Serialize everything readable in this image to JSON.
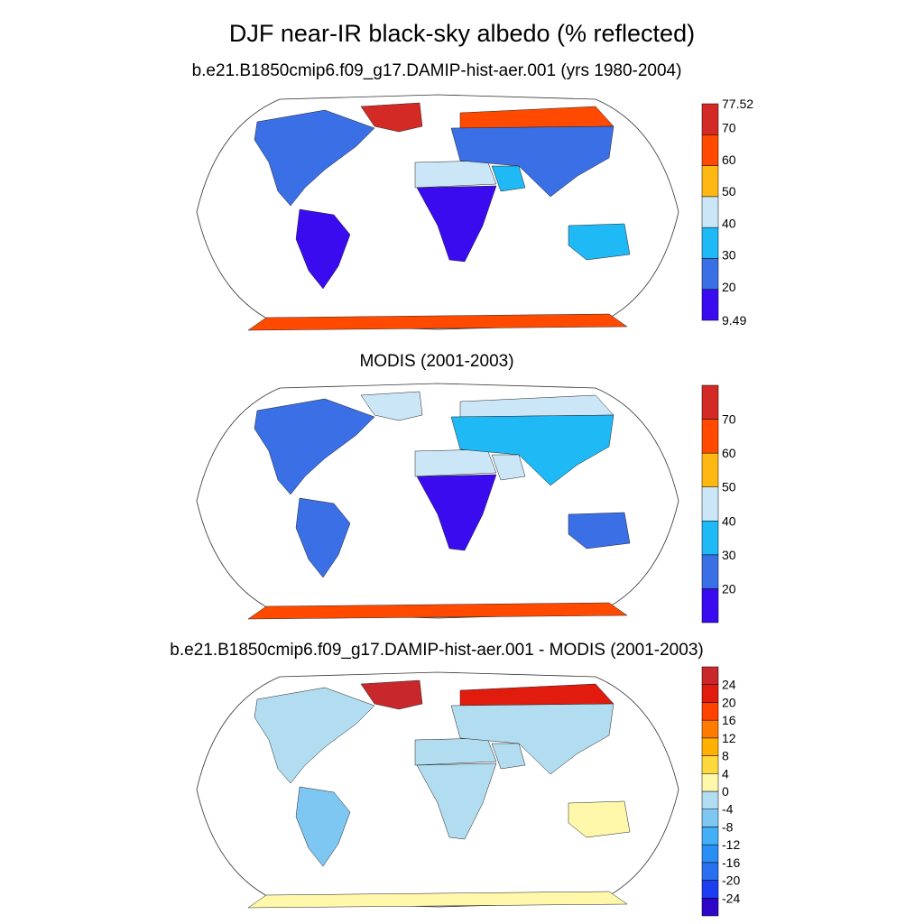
{
  "title": "DJF near-IR black-sky albedo (% reflected)",
  "panels": [
    {
      "title": "b.e21.B1850cmip6.f09_g17.DAMIP-hist-aer.001 (yrs 1980-2004)"
    },
    {
      "title": "MODIS (2001-2003)"
    },
    {
      "title": "b.e21.B1850cmip6.f09_g17.DAMIP-hist-aer.001 - MODIS (2001-2003)"
    }
  ],
  "chart_data": [
    {
      "type": "heatmap",
      "title": "b.e21.B1850cmip6.f09_g17.DAMIP-hist-aer.001 (yrs 1980-2004)",
      "colorbar": {
        "ticks": [
          "77.52",
          "70",
          "60",
          "50",
          "40",
          "30",
          "20",
          "9.49"
        ],
        "tick_values": [
          77.52,
          70,
          60,
          50,
          40,
          30,
          20,
          9.49
        ],
        "levels": [
          9.49,
          20,
          30,
          40,
          50,
          60,
          70,
          77.52
        ],
        "colors": [
          "#3b0bf0",
          "#3a6fe6",
          "#1fb9f5",
          "#cbe7f7",
          "#fdb813",
          "#ff4a00",
          "#d42a25"
        ]
      },
      "regions": [
        {
          "name": "Greenland",
          "value": 75
        },
        {
          "name": "Antarctica",
          "value": 65
        },
        {
          "name": "Arctic Russia",
          "value": 62
        },
        {
          "name": "Sahara",
          "value": 45
        },
        {
          "name": "South America",
          "value": 12
        },
        {
          "name": "Central Africa",
          "value": 12
        },
        {
          "name": "North America",
          "value": 22
        },
        {
          "name": "Asia",
          "value": 28
        },
        {
          "name": "Australia",
          "value": 30
        },
        {
          "name": "Arabia",
          "value": 38
        }
      ]
    },
    {
      "type": "heatmap",
      "title": "MODIS (2001-2003)",
      "colorbar": {
        "ticks": [
          "70",
          "60",
          "50",
          "40",
          "30",
          "20"
        ],
        "tick_values": [
          70,
          60,
          50,
          40,
          30,
          20
        ],
        "levels": [
          10,
          20,
          30,
          40,
          50,
          60,
          70,
          80
        ],
        "colors": [
          "#3b0bf0",
          "#3a6fe6",
          "#1fb9f5",
          "#cbe7f7",
          "#fdb813",
          "#ff4a00",
          "#d42a25"
        ]
      },
      "regions": [
        {
          "name": "Greenland",
          "value": 45
        },
        {
          "name": "Antarctica",
          "value": 65
        },
        {
          "name": "Arctic Russia",
          "value": 42
        },
        {
          "name": "Sahara",
          "value": 48
        },
        {
          "name": "South America",
          "value": 22
        },
        {
          "name": "Central Africa",
          "value": 15
        },
        {
          "name": "North America",
          "value": 24
        },
        {
          "name": "Asia",
          "value": 30
        },
        {
          "name": "Australia",
          "value": 28
        },
        {
          "name": "Arabia",
          "value": 40
        }
      ]
    },
    {
      "type": "heatmap",
      "title": "b.e21.B1850cmip6.f09_g17.DAMIP-hist-aer.001 - MODIS (2001-2003)",
      "colorbar": {
        "ticks": [
          "24",
          "20",
          "16",
          "12",
          "8",
          "4",
          "0",
          "-4",
          "-8",
          "-12",
          "-16",
          "-20",
          "-24"
        ],
        "tick_values": [
          24,
          20,
          16,
          12,
          8,
          4,
          0,
          -4,
          -8,
          -12,
          -16,
          -20,
          -24
        ],
        "levels": [
          -28,
          -24,
          -20,
          -16,
          -12,
          -8,
          -4,
          0,
          4,
          8,
          12,
          16,
          20,
          24,
          28
        ],
        "colors": [
          "#2d06c8",
          "#1d3df0",
          "#2a6ff0",
          "#2a8ff5",
          "#43aff7",
          "#7ec7f2",
          "#b2dcf0",
          "#fff7aa",
          "#ffd93b",
          "#ffb100",
          "#ff7c00",
          "#ff4200",
          "#e11b0d",
          "#c8282b"
        ]
      },
      "regions": [
        {
          "name": "Greenland",
          "value": 26
        },
        {
          "name": "Antarctica",
          "value": 2
        },
        {
          "name": "Arctic Russia",
          "value": 22
        },
        {
          "name": "Sahara",
          "value": -2
        },
        {
          "name": "South America",
          "value": -6
        },
        {
          "name": "Central Africa",
          "value": -2
        },
        {
          "name": "North America",
          "value": -2
        },
        {
          "name": "Asia",
          "value": -4
        },
        {
          "name": "Australia",
          "value": 2
        },
        {
          "name": "Arabia",
          "value": -2
        }
      ]
    }
  ]
}
